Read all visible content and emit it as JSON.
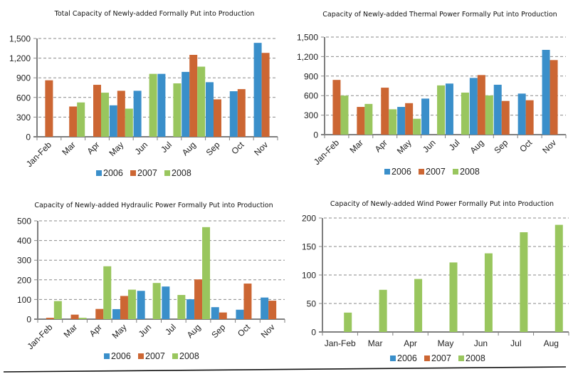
{
  "colors": {
    "2006": "#3a8fca",
    "2007": "#cc6633",
    "2008": "#99c65e"
  },
  "chart_data": [
    {
      "id": "total",
      "type": "bar",
      "title": "Total Capacity of Newly-added Formally Put into Production",
      "xlabel": "",
      "ylabel": "",
      "categories": [
        "Jan-Feb",
        "Mar",
        "Apr",
        "May",
        "Jun",
        "Jul",
        "Aug",
        "Sep",
        "Oct",
        "Nov"
      ],
      "ylim": [
        0,
        1500
      ],
      "yticks": [
        0,
        300,
        600,
        900,
        1200,
        1500
      ],
      "ytick_labels": [
        "0",
        "300",
        "600",
        "900",
        "1,200",
        "1,500"
      ],
      "grid": true,
      "legend": "bottom",
      "xlabel_rotation": "rotated-45",
      "series": [
        {
          "name": "2006",
          "values": [
            null,
            null,
            null,
            480,
            702,
            960,
            990,
            833,
            695,
            1433
          ]
        },
        {
          "name": "2007",
          "values": [
            862,
            462,
            793,
            702,
            null,
            null,
            1250,
            571,
            727,
            1280
          ]
        },
        {
          "name": "2008",
          "values": [
            null,
            524,
            673,
            429,
            960,
            815,
            1070,
            null,
            null,
            null
          ]
        }
      ]
    },
    {
      "id": "thermal",
      "type": "bar",
      "title": "Capacity of Newly-added Thermal Power Formally Put into Production",
      "xlabel": "",
      "ylabel": "",
      "categories": [
        "Jan-Feb",
        "Mar",
        "Apr",
        "May",
        "Jun",
        "Jul",
        "Aug",
        "Sep",
        "Oct",
        "Nov"
      ],
      "ylim": [
        0,
        1500
      ],
      "yticks": [
        0,
        300,
        600,
        900,
        1200,
        1500
      ],
      "ytick_labels": [
        "0",
        "300",
        "600",
        "900",
        "1,200",
        "1,500"
      ],
      "grid": true,
      "legend": "bottom",
      "xlabel_rotation": "rotated-45",
      "series": [
        {
          "name": "2006",
          "values": [
            null,
            null,
            null,
            426,
            554,
            785,
            872,
            767,
            631,
            1303
          ]
        },
        {
          "name": "2007",
          "values": [
            841,
            426,
            722,
            484,
            null,
            null,
            916,
            518,
            529,
            1146
          ]
        },
        {
          "name": "2008",
          "values": [
            600,
            472,
            390,
            244,
            757,
            646,
            602,
            null,
            null,
            null
          ]
        }
      ]
    },
    {
      "id": "hydraulic",
      "type": "bar",
      "title": "Capacity of Newly-added Hydraulic Power Formally Put into Production",
      "xlabel": "",
      "ylabel": "",
      "categories": [
        "Jan-Feb",
        "Mar",
        "Apr",
        "May",
        "Jun",
        "Jul",
        "Aug",
        "Sep",
        "Oct",
        "Nov"
      ],
      "ylim": [
        0,
        500
      ],
      "yticks": [
        0,
        100,
        200,
        300,
        400,
        500
      ],
      "ytick_labels": [
        "0",
        "100",
        "200",
        "300",
        "400",
        "500"
      ],
      "grid": true,
      "legend": "bottom",
      "xlabel_rotation": "rotated-45",
      "series": [
        {
          "name": "2006",
          "values": [
            null,
            null,
            null,
            51,
            144,
            166,
            101,
            61,
            48,
            110
          ]
        },
        {
          "name": "2007",
          "values": [
            7,
            23,
            52,
            118,
            null,
            null,
            202,
            34,
            181,
            94
          ]
        },
        {
          "name": "2008",
          "values": [
            92,
            7,
            269,
            150,
            184,
            123,
            468,
            null,
            null,
            null
          ]
        }
      ]
    },
    {
      "id": "wind",
      "type": "bar",
      "title": "Capacity of Newly-added Wind Power Formally Put into Production",
      "xlabel": "",
      "ylabel": "",
      "categories": [
        "Jan-Feb",
        "Mar",
        "Apr",
        "May",
        "Jun",
        "Jul",
        "Aug"
      ],
      "ylim": [
        0,
        200
      ],
      "yticks": [
        0,
        50,
        100,
        150,
        200
      ],
      "ytick_labels": [
        "0",
        "50",
        "100",
        "150",
        "200"
      ],
      "grid": true,
      "legend": "bottom",
      "xlabel_rotation": "horizontal",
      "series": [
        {
          "name": "2006",
          "values": [
            null,
            null,
            null,
            null,
            null,
            null,
            null
          ]
        },
        {
          "name": "2007",
          "values": [
            null,
            null,
            null,
            null,
            null,
            null,
            null
          ]
        },
        {
          "name": "2008",
          "values": [
            34,
            74,
            93,
            122,
            138,
            175,
            188
          ]
        }
      ]
    }
  ]
}
